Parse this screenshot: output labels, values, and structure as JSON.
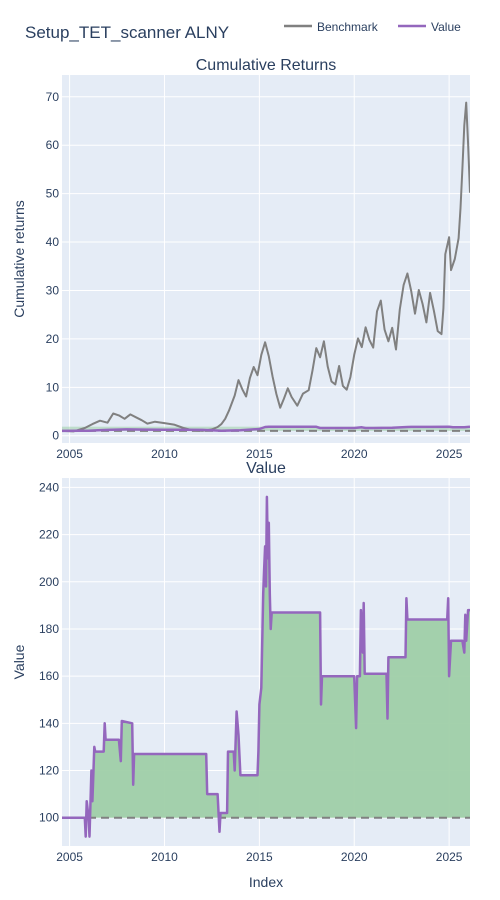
{
  "figure": {
    "title": "Setup_TET_scanner ALNY",
    "legend": [
      "Benchmark",
      "Value"
    ]
  },
  "colors": {
    "benchmark": "#808080",
    "value": "#9467bd",
    "fill": "#9fcfa8",
    "plot_bg": "#e5ecf6",
    "grid": "#ffffff",
    "baseline": "#808080"
  },
  "chart_data": [
    {
      "type": "line",
      "title": "Cumulative Returns",
      "xlabel": "",
      "ylabel": "Cumulative returns",
      "xlim": [
        2004.6,
        2026.1
      ],
      "ylim": [
        -1.5,
        74.5
      ],
      "yticks": [
        0,
        10,
        20,
        30,
        40,
        50,
        60,
        70
      ],
      "xticks": [
        2005,
        2010,
        2015,
        2020,
        2025
      ],
      "grid": true,
      "legend_position": "top-right",
      "baseline": 1,
      "series": [
        {
          "name": "Benchmark",
          "x": [
            2004.6,
            2005.2,
            2005.8,
            2006.2,
            2006.6,
            2007.0,
            2007.3,
            2007.6,
            2007.9,
            2008.2,
            2008.5,
            2008.8,
            2009.1,
            2009.5,
            2010.0,
            2010.5,
            2011.0,
            2011.5,
            2012.0,
            2012.5,
            2012.8,
            2013.0,
            2013.2,
            2013.4,
            2013.7,
            2013.9,
            2014.1,
            2014.3,
            2014.5,
            2014.7,
            2014.9,
            2015.1,
            2015.3,
            2015.5,
            2015.7,
            2015.9,
            2016.1,
            2016.3,
            2016.5,
            2016.7,
            2017.0,
            2017.3,
            2017.6,
            2017.8,
            2018.0,
            2018.2,
            2018.4,
            2018.6,
            2018.8,
            2019.0,
            2019.2,
            2019.4,
            2019.6,
            2019.8,
            2020.0,
            2020.2,
            2020.4,
            2020.6,
            2020.8,
            2021.0,
            2021.2,
            2021.4,
            2021.6,
            2021.8,
            2022.0,
            2022.2,
            2022.4,
            2022.6,
            2022.8,
            2023.0,
            2023.2,
            2023.4,
            2023.6,
            2023.8,
            2024.0,
            2024.2,
            2024.4,
            2024.6,
            2024.7,
            2024.8,
            2025.0,
            2025.1,
            2025.3,
            2025.5,
            2025.6,
            2025.7,
            2025.8,
            2025.9,
            2026.0,
            2026.1
          ],
          "y": [
            1,
            0.9,
            1.6,
            2.4,
            3.1,
            2.7,
            4.6,
            4.2,
            3.5,
            4.4,
            3.8,
            3.2,
            2.5,
            2.9,
            2.6,
            2.3,
            1.6,
            1.1,
            1.0,
            1.3,
            1.8,
            2.4,
            3.5,
            5.2,
            8.3,
            11.5,
            9.6,
            8.1,
            11.9,
            14.2,
            12.5,
            16.7,
            19.3,
            16.4,
            12.2,
            8.6,
            5.8,
            7.7,
            9.8,
            8.0,
            6.2,
            8.7,
            9.4,
            13.5,
            18.1,
            16.2,
            19.5,
            14.3,
            11.2,
            10.6,
            14.4,
            10.3,
            9.5,
            12.1,
            16.7,
            20.1,
            18.3,
            22.4,
            19.8,
            18.2,
            25.7,
            27.9,
            21.9,
            19.5,
            22.3,
            17.8,
            26.1,
            31.1,
            33.5,
            29.9,
            25.2,
            30.1,
            27.2,
            23.4,
            29.5,
            25.8,
            21.6,
            21.0,
            26.3,
            37.5,
            41.0,
            34.2,
            36.5,
            40.8,
            47.0,
            55.2,
            64.1,
            68.8,
            60.3,
            50.2
          ]
        },
        {
          "name": "Value",
          "x": [
            2004.6,
            2005.5,
            2006.0,
            2006.5,
            2007.0,
            2008.0,
            2009.0,
            2010.0,
            2011.0,
            2012.0,
            2012.6,
            2013.0,
            2014.0,
            2014.6,
            2015.0,
            2015.3,
            2015.5,
            2016.0,
            2017.0,
            2018.0,
            2018.2,
            2019.0,
            2020.0,
            2020.4,
            2020.6,
            2021.0,
            2022.0,
            2022.8,
            2023.0,
            2024.0,
            2025.0,
            2025.2,
            2025.8,
            2026.1
          ],
          "y": [
            1.0,
            1.02,
            1.05,
            1.12,
            1.2,
            1.3,
            1.27,
            1.25,
            1.22,
            1.2,
            1.1,
            1.03,
            1.15,
            1.28,
            1.4,
            1.8,
            1.85,
            1.85,
            1.85,
            1.85,
            1.6,
            1.6,
            1.6,
            1.75,
            1.6,
            1.6,
            1.65,
            1.8,
            1.83,
            1.83,
            1.84,
            1.75,
            1.75,
            1.87
          ]
        }
      ]
    },
    {
      "type": "area",
      "title": "Value",
      "xlabel": "Index",
      "ylabel": "Value",
      "xlim": [
        2004.6,
        2026.1
      ],
      "ylim": [
        88,
        244
      ],
      "yticks": [
        100,
        120,
        140,
        160,
        180,
        200,
        220,
        240
      ],
      "xticks": [
        2005,
        2010,
        2015,
        2020,
        2025
      ],
      "grid": true,
      "baseline": 100,
      "series": [
        {
          "name": "Value",
          "x": [
            2004.6,
            2005.8,
            2005.85,
            2005.9,
            2006.0,
            2006.05,
            2006.15,
            2006.2,
            2006.3,
            2006.35,
            2006.8,
            2006.85,
            2006.9,
            2007.6,
            2007.7,
            2007.75,
            2008.3,
            2008.35,
            2008.4,
            2009.0,
            2010.0,
            2011.0,
            2012.0,
            2012.2,
            2012.25,
            2012.8,
            2012.9,
            2012.95,
            2013.3,
            2013.35,
            2013.65,
            2013.7,
            2013.8,
            2013.9,
            2014.0,
            2014.1,
            2014.9,
            2014.95,
            2015.0,
            2015.1,
            2015.2,
            2015.25,
            2015.3,
            2015.35,
            2015.4,
            2015.45,
            2015.5,
            2015.55,
            2015.6,
            2015.65,
            2015.7,
            2015.8,
            2016.5,
            2017.5,
            2018.2,
            2018.25,
            2018.3,
            2018.35,
            2019.0,
            2020.0,
            2020.1,
            2020.15,
            2020.3,
            2020.35,
            2020.45,
            2020.5,
            2020.55,
            2020.65,
            2020.7,
            2021.0,
            2021.5,
            2021.7,
            2021.75,
            2021.8,
            2021.85,
            2021.9,
            2022.0,
            2022.5,
            2022.7,
            2022.75,
            2022.8,
            2023.0,
            2024.0,
            2024.9,
            2024.95,
            2025.0,
            2025.1,
            2025.5,
            2025.7,
            2025.8,
            2025.85,
            2025.9,
            2026.0,
            2026.1
          ],
          "y": [
            100,
            100,
            92,
            107,
            100,
            92,
            120,
            107,
            130,
            128,
            128,
            140,
            133,
            133,
            124,
            141,
            140,
            114,
            127,
            127,
            127,
            127,
            127,
            127,
            110,
            110,
            94,
            102,
            102,
            128,
            128,
            120,
            145,
            135,
            118,
            118,
            118,
            128,
            148,
            155,
            195,
            205,
            215,
            198,
            236,
            210,
            225,
            195,
            180,
            187,
            187,
            187,
            187,
            187,
            187,
            148,
            160,
            160,
            160,
            160,
            138,
            160,
            160,
            188,
            170,
            191,
            161,
            161,
            161,
            161,
            161,
            161,
            142,
            168,
            168,
            168,
            168,
            168,
            168,
            193,
            184,
            184,
            184,
            184,
            193,
            160,
            175,
            175,
            175,
            170,
            186,
            175,
            188,
            188
          ]
        }
      ]
    }
  ]
}
